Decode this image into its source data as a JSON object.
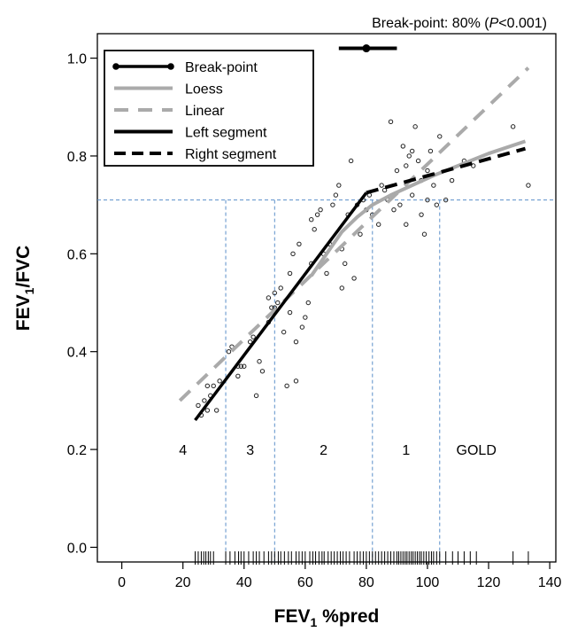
{
  "chart_data": {
    "type": "scatter",
    "xlabel": {
      "pre": "FEV",
      "sub": "1",
      "post": " %pred"
    },
    "ylabel": {
      "pre": "FEV",
      "sub": "1",
      "post": "/FVC"
    },
    "xlim": [
      -8,
      142
    ],
    "ylim": [
      -0.03,
      1.05
    ],
    "xticks": [
      0,
      20,
      40,
      60,
      80,
      100,
      120,
      140
    ],
    "xtick_labels": [
      "0",
      "20",
      "40",
      "60",
      "80",
      "100",
      "120",
      "140"
    ],
    "yticks": [
      0.0,
      0.2,
      0.4,
      0.6,
      0.8,
      1.0
    ],
    "ytick_labels": [
      "0.0",
      "0.2",
      "0.4",
      "0.6",
      "0.8",
      "1.0"
    ],
    "annotation": {
      "pre": "Break-point: 80% (",
      "italic": "P",
      "post": "<0.001)"
    },
    "legend_position": "top-left",
    "legend": [
      {
        "label": "Break-point",
        "style": "line-dot",
        "color": "#000000"
      },
      {
        "label": "Loess",
        "style": "solid",
        "color": "#aaaaaa"
      },
      {
        "label": "Linear",
        "style": "dashed",
        "color": "#aaaaaa"
      },
      {
        "label": "Left segment",
        "style": "solid",
        "color": "#000000"
      },
      {
        "label": "Right segment",
        "style": "dashed",
        "color": "#000000"
      }
    ],
    "breakpoint": {
      "x": 80,
      "y": 1.02,
      "ci": [
        71,
        90
      ]
    },
    "reference_line_y": 0.71,
    "gold_cutoffs_x": [
      34,
      50,
      82,
      104
    ],
    "gold_labels": [
      {
        "text": "4",
        "x": 20
      },
      {
        "text": "3",
        "x": 42
      },
      {
        "text": "2",
        "x": 66
      },
      {
        "text": "1",
        "x": 93
      },
      {
        "text": "GOLD",
        "x": 116
      }
    ],
    "gold_label_y": 0.2,
    "series": [
      {
        "name": "Left segment",
        "style": "solid",
        "color": "#000000",
        "points": [
          [
            24,
            0.26
          ],
          [
            80,
            0.725
          ]
        ]
      },
      {
        "name": "Right segment",
        "style": "dashed",
        "color": "#000000",
        "points": [
          [
            80,
            0.725
          ],
          [
            132,
            0.815
          ]
        ]
      },
      {
        "name": "Linear",
        "style": "dashed",
        "color": "#aaaaaa",
        "points": [
          [
            19,
            0.3
          ],
          [
            133,
            0.98
          ]
        ]
      },
      {
        "name": "Loess",
        "style": "solid",
        "color": "#aaaaaa",
        "points": [
          [
            62,
            0.555
          ],
          [
            67,
            0.6
          ],
          [
            72,
            0.645
          ],
          [
            77,
            0.675
          ],
          [
            82,
            0.7
          ],
          [
            88,
            0.72
          ],
          [
            95,
            0.74
          ],
          [
            102,
            0.76
          ],
          [
            110,
            0.78
          ],
          [
            120,
            0.805
          ],
          [
            132,
            0.83
          ]
        ]
      }
    ],
    "points": [
      [
        25,
        0.29
      ],
      [
        26,
        0.27
      ],
      [
        27,
        0.3
      ],
      [
        28,
        0.33
      ],
      [
        28,
        0.28
      ],
      [
        29,
        0.31
      ],
      [
        30,
        0.33
      ],
      [
        31,
        0.28
      ],
      [
        32,
        0.34
      ],
      [
        35,
        0.4
      ],
      [
        36,
        0.41
      ],
      [
        38,
        0.35
      ],
      [
        38,
        0.37
      ],
      [
        39,
        0.37
      ],
      [
        40,
        0.37
      ],
      [
        42,
        0.42
      ],
      [
        43,
        0.43
      ],
      [
        44,
        0.31
      ],
      [
        45,
        0.38
      ],
      [
        46,
        0.36
      ],
      [
        48,
        0.46
      ],
      [
        48,
        0.51
      ],
      [
        49,
        0.49
      ],
      [
        50,
        0.49
      ],
      [
        50,
        0.52
      ],
      [
        51,
        0.5
      ],
      [
        52,
        0.53
      ],
      [
        53,
        0.44
      ],
      [
        54,
        0.33
      ],
      [
        55,
        0.56
      ],
      [
        55,
        0.48
      ],
      [
        56,
        0.6
      ],
      [
        57,
        0.34
      ],
      [
        57,
        0.42
      ],
      [
        58,
        0.62
      ],
      [
        59,
        0.45
      ],
      [
        60,
        0.47
      ],
      [
        61,
        0.5
      ],
      [
        62,
        0.58
      ],
      [
        62,
        0.67
      ],
      [
        63,
        0.65
      ],
      [
        64,
        0.68
      ],
      [
        65,
        0.69
      ],
      [
        66,
        0.6
      ],
      [
        67,
        0.56
      ],
      [
        68,
        0.62
      ],
      [
        69,
        0.7
      ],
      [
        70,
        0.72
      ],
      [
        71,
        0.74
      ],
      [
        72,
        0.53
      ],
      [
        72,
        0.61
      ],
      [
        73,
        0.58
      ],
      [
        74,
        0.68
      ],
      [
        75,
        0.79
      ],
      [
        76,
        0.55
      ],
      [
        77,
        0.7
      ],
      [
        78,
        0.64
      ],
      [
        79,
        0.71
      ],
      [
        80,
        0.69
      ],
      [
        81,
        0.72
      ],
      [
        82,
        0.68
      ],
      [
        84,
        0.66
      ],
      [
        85,
        0.74
      ],
      [
        86,
        0.73
      ],
      [
        87,
        0.71
      ],
      [
        88,
        0.87
      ],
      [
        89,
        0.69
      ],
      [
        90,
        0.77
      ],
      [
        91,
        0.7
      ],
      [
        92,
        0.82
      ],
      [
        93,
        0.78
      ],
      [
        93,
        0.66
      ],
      [
        94,
        0.8
      ],
      [
        95,
        0.81
      ],
      [
        95,
        0.72
      ],
      [
        96,
        0.86
      ],
      [
        97,
        0.79
      ],
      [
        98,
        0.75
      ],
      [
        98,
        0.68
      ],
      [
        99,
        0.64
      ],
      [
        100,
        0.77
      ],
      [
        100,
        0.71
      ],
      [
        101,
        0.81
      ],
      [
        102,
        0.74
      ],
      [
        103,
        0.7
      ],
      [
        104,
        0.84
      ],
      [
        106,
        0.71
      ],
      [
        108,
        0.75
      ],
      [
        112,
        0.79
      ],
      [
        115,
        0.78
      ],
      [
        128,
        0.86
      ],
      [
        133,
        0.74
      ]
    ],
    "rug_x": [
      24,
      25,
      26,
      26.8,
      27.5,
      28.3,
      29,
      30,
      34,
      35.4,
      37,
      38.2,
      39,
      40,
      41.5,
      43,
      44,
      45,
      46.5,
      48,
      49,
      50,
      51.2,
      52,
      53.2,
      54.5,
      55.5,
      57,
      58,
      59,
      60,
      61.5,
      62.5,
      63.4,
      64.5,
      65.5,
      66.2,
      67.5,
      68.5,
      69.5,
      70.5,
      71.5,
      72.4,
      73.4,
      74.5,
      76,
      77,
      78,
      79,
      80,
      81,
      82,
      83,
      84,
      85,
      86,
      87,
      88,
      89,
      90,
      90.6,
      91.3,
      92,
      92.7,
      93.3,
      94,
      94.7,
      95.3,
      96,
      96.7,
      97.4,
      98,
      98.8,
      99.6,
      100.5,
      101.3,
      102,
      103,
      104,
      106,
      108.2,
      110,
      112,
      114,
      116,
      128,
      133
    ]
  }
}
